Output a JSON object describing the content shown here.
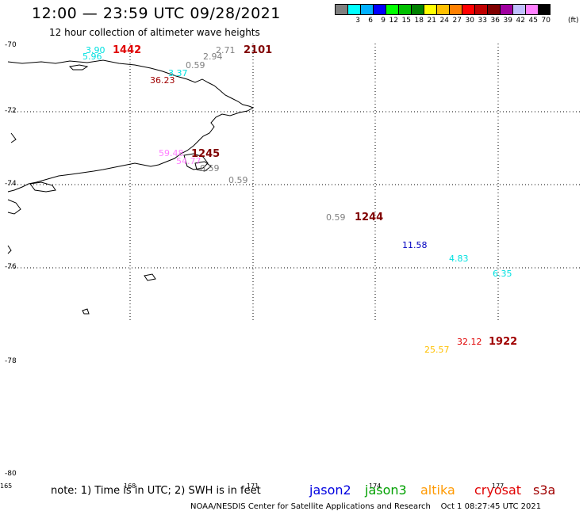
{
  "header": {
    "title": "12:00 — 23:59 UTC 09/28/2021",
    "subtitle": "12 hour collection of altimeter wave heights"
  },
  "colorbar": {
    "unit": "(ft)",
    "colors": [
      "#7f7f7f",
      "#00ffff",
      "#00b0ff",
      "#0000ff",
      "#00ff00",
      "#00c000",
      "#008000",
      "#ffff00",
      "#ffc000",
      "#ff8000",
      "#ff0000",
      "#c00000",
      "#800000",
      "#a000a0",
      "#c0c0ff",
      "#ff80ff",
      "#000000"
    ],
    "labels": [
      "",
      "3",
      "6",
      "9",
      "12",
      "15",
      "18",
      "21",
      "24",
      "27",
      "30",
      "33",
      "36",
      "39",
      "42",
      "45",
      "70"
    ]
  },
  "axes": {
    "lat_labels": [
      "-70",
      "-72",
      "-74",
      "-76",
      "-78",
      "-80"
    ],
    "lon_labels": [
      "165",
      "168",
      "171",
      "174",
      "177"
    ]
  },
  "observations": {
    "values": [
      {
        "text": "3.90",
        "color": "#00e0e0"
      },
      {
        "text": "5.96",
        "color": "#00e0e0"
      },
      {
        "text": "0.59",
        "color": "#808080"
      },
      {
        "text": "2.94",
        "color": "#808080"
      },
      {
        "text": "2.71",
        "color": "#808080"
      },
      {
        "text": "3.37",
        "color": "#00e0e0"
      },
      {
        "text": "36.23",
        "color": "#a00000"
      },
      {
        "text": "59.48",
        "color": "#ff80ff"
      },
      {
        "text": "54.77",
        "color": "#ff80ff"
      },
      {
        "text": "0.59",
        "color": "#808080"
      },
      {
        "text": "0.59",
        "color": "#808080"
      },
      {
        "text": "0.59",
        "color": "#808080"
      },
      {
        "text": "11.58",
        "color": "#0000c0"
      },
      {
        "text": "4.83",
        "color": "#00e0e0"
      },
      {
        "text": "6.35",
        "color": "#00e0e0"
      },
      {
        "text": "25.57",
        "color": "#ffc000"
      },
      {
        "text": "32.12",
        "color": "#e00000"
      }
    ],
    "times": [
      {
        "text": "1442",
        "color": "#e00000"
      },
      {
        "text": "2101",
        "color": "#800000"
      },
      {
        "text": "1245",
        "color": "#800000"
      },
      {
        "text": "1244",
        "color": "#800000"
      },
      {
        "text": "1922",
        "color": "#a00000"
      }
    ]
  },
  "legend": {
    "note": "note: 1) Time is in UTC; 2) SWH is in feet",
    "missions": [
      {
        "name": "jason2",
        "color": "#0000e0"
      },
      {
        "name": "jason3",
        "color": "#00a000"
      },
      {
        "name": "altika",
        "color": "#ff9900"
      },
      {
        "name": "cryosat",
        "color": "#e00000"
      },
      {
        "name": "s3a",
        "color": "#a00000"
      }
    ]
  },
  "footer": {
    "credit": "NOAA/NESDIS Center for Satellite Applications and Research",
    "timestamp": "Oct  1 08:27:45 UTC 2021"
  }
}
